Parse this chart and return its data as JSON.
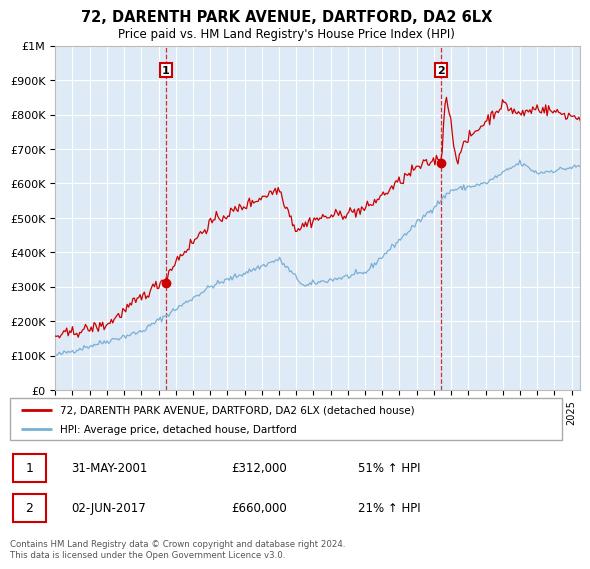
{
  "title": "72, DARENTH PARK AVENUE, DARTFORD, DA2 6LX",
  "subtitle": "Price paid vs. HM Land Registry's House Price Index (HPI)",
  "ylim": [
    0,
    1000000
  ],
  "yticks": [
    0,
    100000,
    200000,
    300000,
    400000,
    500000,
    600000,
    700000,
    800000,
    900000,
    1000000
  ],
  "ytick_labels": [
    "£0",
    "£100K",
    "£200K",
    "£300K",
    "£400K",
    "£500K",
    "£600K",
    "£700K",
    "£800K",
    "£900K",
    "£1M"
  ],
  "red_line_color": "#cc0000",
  "blue_line_color": "#7bafd4",
  "plot_bg_color": "#deeaf5",
  "annotation_box_color": "#cc0000",
  "grid_color": "#ffffff",
  "background_color": "#ffffff",
  "legend_label_red": "72, DARENTH PARK AVENUE, DARTFORD, DA2 6LX (detached house)",
  "legend_label_blue": "HPI: Average price, detached house, Dartford",
  "sale1_date": "31-MAY-2001",
  "sale1_price": "£312,000",
  "sale1_pct": "51% ↑ HPI",
  "sale1_year": 2001.42,
  "sale1_value": 312000,
  "sale2_date": "02-JUN-2017",
  "sale2_price": "£660,000",
  "sale2_pct": "21% ↑ HPI",
  "sale2_year": 2017.42,
  "sale2_value": 660000,
  "footer": "Contains HM Land Registry data © Crown copyright and database right 2024.\nThis data is licensed under the Open Government Licence v3.0.",
  "xstart": 1995,
  "xend": 2025.5
}
